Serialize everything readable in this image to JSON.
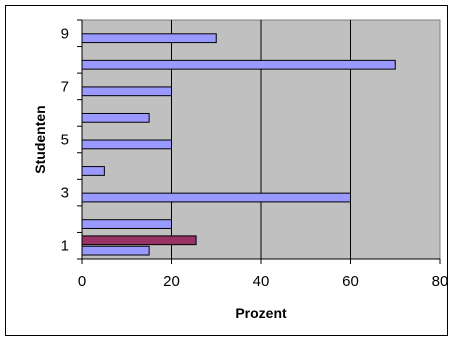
{
  "chart_data": {
    "type": "bar",
    "orientation": "horizontal",
    "xlabel": "Prozent",
    "ylabel": "Studenten",
    "xlim": [
      0,
      80
    ],
    "x_ticks": [
      "0",
      "20",
      "40",
      "60",
      "80"
    ],
    "y_tick_labels": [
      "1",
      "3",
      "5",
      "7",
      "9"
    ],
    "grid": "vertical",
    "plot_background": "#c0c0c0",
    "series": [
      {
        "color": "#9999ff",
        "points": [
          {
            "student": 1,
            "value": 15
          },
          {
            "student": 2,
            "value": 20
          },
          {
            "student": 3,
            "value": 60
          },
          {
            "student": 4,
            "value": 5
          },
          {
            "student": 5,
            "value": 20
          },
          {
            "student": 6,
            "value": 15
          },
          {
            "student": 7,
            "value": 20
          },
          {
            "student": 8,
            "value": 70
          },
          {
            "student": 9,
            "value": 30
          }
        ]
      },
      {
        "color": "#993366",
        "points": [
          {
            "student": 1,
            "value": 25.5
          }
        ]
      }
    ]
  }
}
